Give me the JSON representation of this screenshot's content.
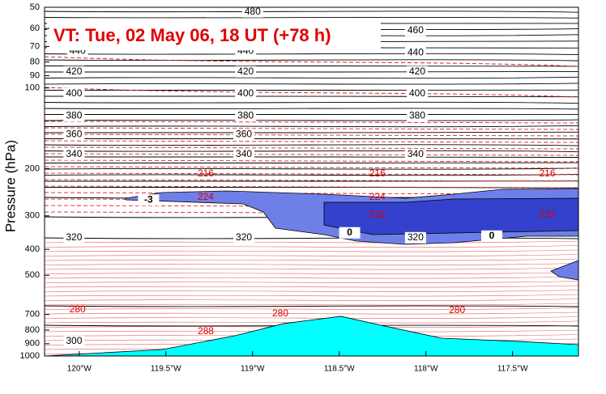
{
  "chart_data": {
    "type": "cross-section",
    "title": "VT:  Tue, 02 May 06, 18 UT (+78 h)",
    "y_label": "Pressure (hPa)",
    "ylog": true,
    "ylim": [
      1000,
      50
    ],
    "yticks": [
      50,
      60,
      70,
      80,
      90,
      100,
      200,
      300,
      400,
      500,
      700,
      800,
      900,
      1000
    ],
    "xlim": [
      -120.2,
      -117.12
    ],
    "xticks": [
      {
        "value": -120,
        "label": "120°W"
      },
      {
        "value": -119.5,
        "label": "119.5°W"
      },
      {
        "value": -119,
        "label": "119°W"
      },
      {
        "value": -118.5,
        "label": "118.5°W"
      },
      {
        "value": -118,
        "label": "118°W"
      },
      {
        "value": -117.5,
        "label": "117.5°W"
      }
    ],
    "terrain": {
      "color": "#00ffff",
      "x": [
        -120.2,
        -119.52,
        -119.1,
        -118.82,
        -118.49,
        -118.26,
        -117.91,
        -117.47,
        -117.12
      ],
      "values": [
        1000,
        946,
        840,
        757,
        711,
        768,
        858,
        882,
        907
      ]
    },
    "theta_labels": {
      "color": "#000000",
      "items": [
        {
          "x": -119.0,
          "y": 52,
          "value": 480
        },
        {
          "x": -118.06,
          "y": 61,
          "value": 460
        },
        {
          "x": -120.01,
          "y": 73,
          "value": 440
        },
        {
          "x": -119.04,
          "y": 73,
          "value": 440
        },
        {
          "x": -118.06,
          "y": 74,
          "value": 440
        },
        {
          "x": -120.03,
          "y": 87,
          "value": 420
        },
        {
          "x": -119.04,
          "y": 87,
          "value": 420
        },
        {
          "x": -118.05,
          "y": 87,
          "value": 420
        },
        {
          "x": -120.03,
          "y": 105,
          "value": 400
        },
        {
          "x": -119.04,
          "y": 105,
          "value": 400
        },
        {
          "x": -118.05,
          "y": 105,
          "value": 400
        },
        {
          "x": -120.03,
          "y": 127,
          "value": 380
        },
        {
          "x": -119.04,
          "y": 127,
          "value": 380
        },
        {
          "x": -118.05,
          "y": 127,
          "value": 380
        },
        {
          "x": -120.03,
          "y": 149,
          "value": 360
        },
        {
          "x": -119.05,
          "y": 149,
          "value": 360
        },
        {
          "x": -120.03,
          "y": 177,
          "value": 340
        },
        {
          "x": -119.05,
          "y": 177,
          "value": 340
        },
        {
          "x": -118.06,
          "y": 177,
          "value": 340
        },
        {
          "x": -120.03,
          "y": 362,
          "value": 320
        },
        {
          "x": -119.05,
          "y": 362,
          "value": 320
        },
        {
          "x": -118.06,
          "y": 362,
          "value": 320
        },
        {
          "x": -120.03,
          "y": 882,
          "value": 300
        }
      ]
    },
    "temp_labels": {
      "color": "#dd0000",
      "items": [
        {
          "x": -119.27,
          "y": 209,
          "value": 216
        },
        {
          "x": -118.28,
          "y": 209,
          "value": 216
        },
        {
          "x": -117.3,
          "y": 209,
          "value": 216
        },
        {
          "x": -119.27,
          "y": 256,
          "value": 224
        },
        {
          "x": -118.28,
          "y": 256,
          "value": 224
        },
        {
          "x": -118.28,
          "y": 298,
          "value": 232
        },
        {
          "x": -117.3,
          "y": 298,
          "value": 232
        },
        {
          "x": -120.01,
          "y": 673,
          "value": 280
        },
        {
          "x": -118.84,
          "y": 696,
          "value": 280
        },
        {
          "x": -117.82,
          "y": 677,
          "value": 280
        },
        {
          "x": -119.27,
          "y": 812,
          "value": 288
        }
      ]
    },
    "pv_labels": {
      "color": "#000000",
      "items": [
        {
          "x": -119.6,
          "y": 262,
          "value": -3
        },
        {
          "x": -118.44,
          "y": 347,
          "value": 0
        },
        {
          "x": -117.62,
          "y": 357,
          "value": 0
        }
      ]
    }
  }
}
